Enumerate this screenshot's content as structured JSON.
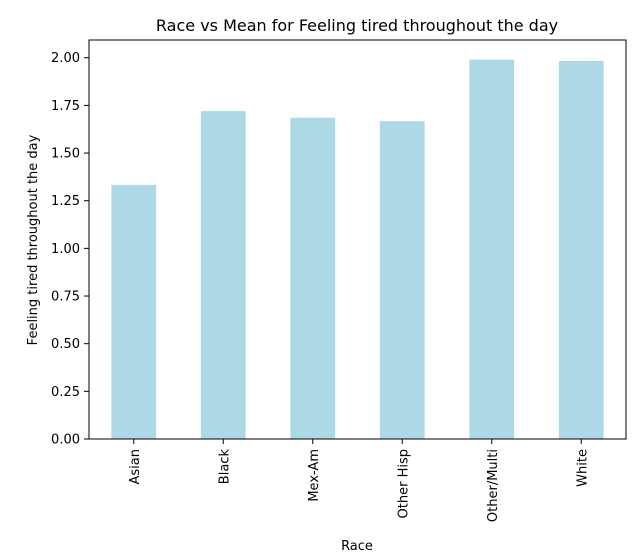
{
  "chart_data": {
    "type": "bar",
    "title": "Race vs Mean for Feeling tired throughout the day",
    "xlabel": "Race",
    "ylabel": "Feeling tired throughout the day",
    "categories": [
      "Asian",
      "Black",
      "Mex-Am",
      "Other Hisp",
      "Other/Multi",
      "White"
    ],
    "values": [
      1.333,
      1.72,
      1.685,
      1.667,
      1.99,
      1.983
    ],
    "ylim": [
      0,
      2.093
    ],
    "yticks": [
      "0.00",
      "0.25",
      "0.50",
      "0.75",
      "1.00",
      "1.25",
      "1.50",
      "1.75",
      "2.00"
    ],
    "bar_color": "#add8e6",
    "grid": false,
    "legend": "none"
  }
}
